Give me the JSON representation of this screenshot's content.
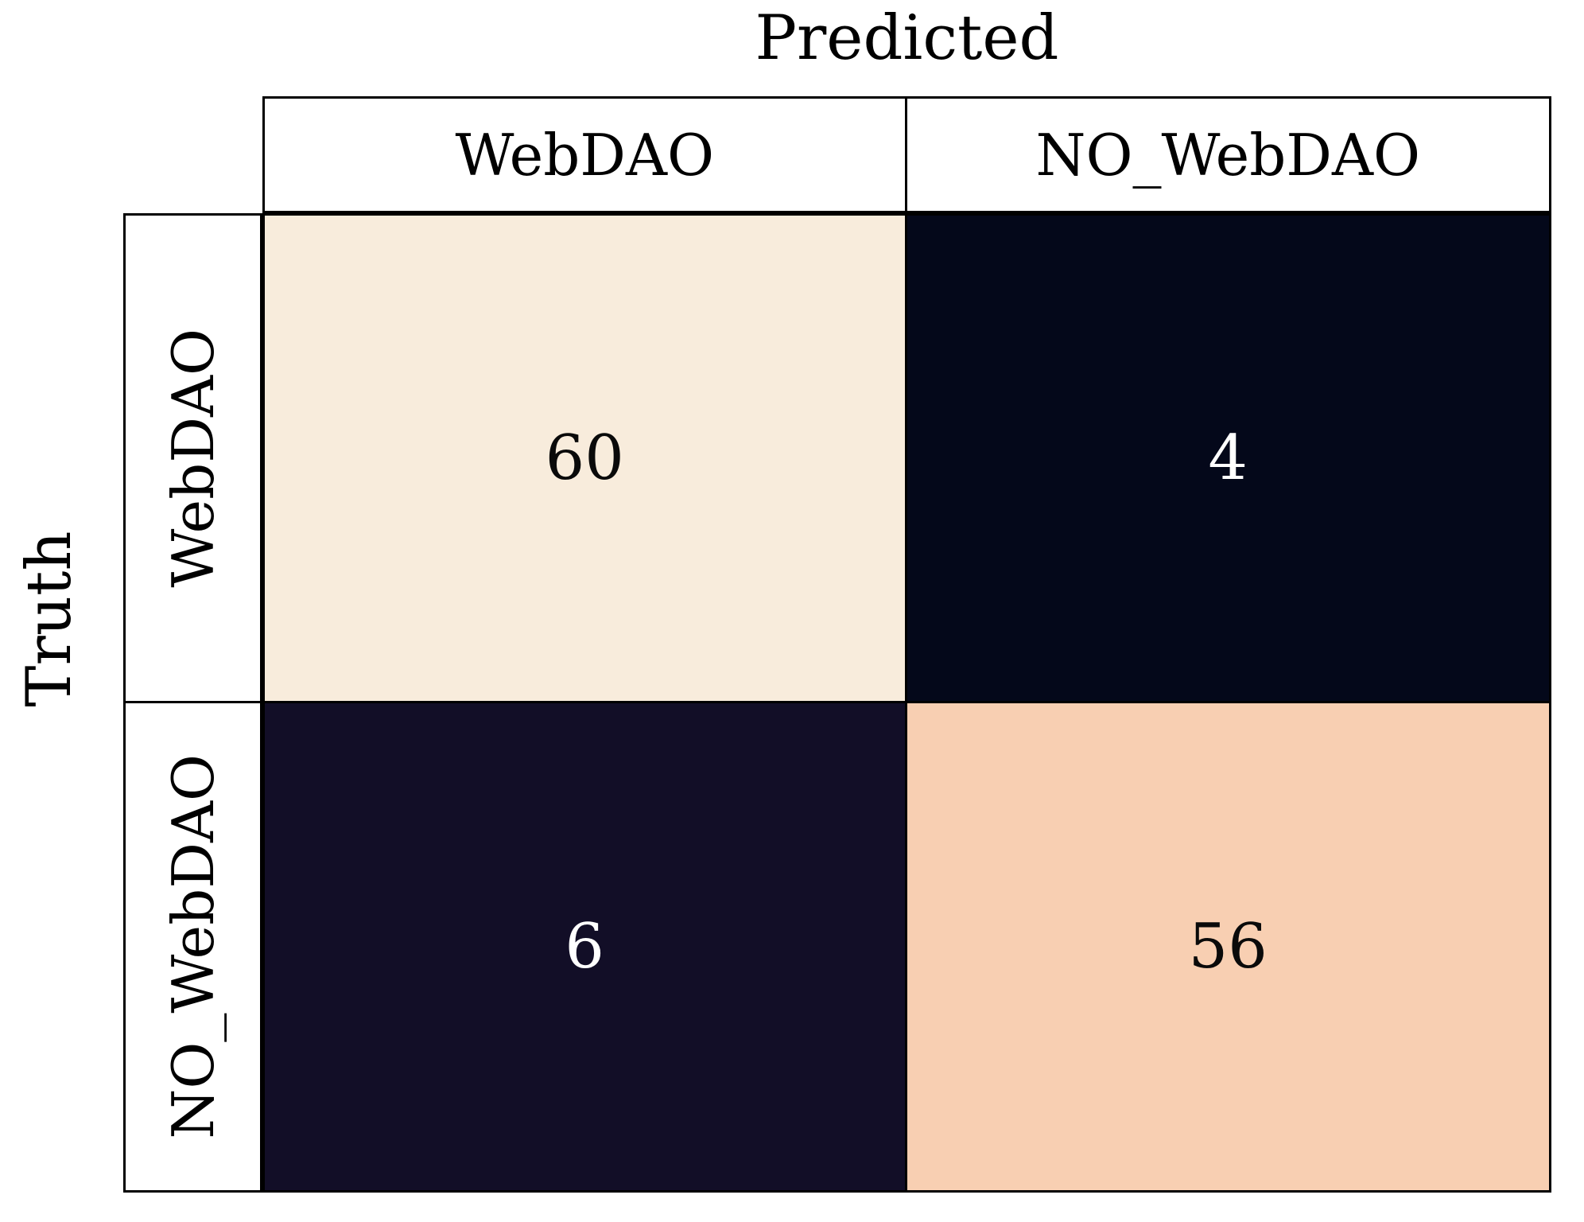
{
  "chart_data": {
    "type": "heatmap",
    "subtype": "confusion-matrix",
    "xlabel": "Predicted",
    "ylabel": "Truth",
    "xlabel_position": "top",
    "ylabel_position": "left",
    "columns": [
      "WebDAO",
      "NO_WebDAO"
    ],
    "rows": [
      "WebDAO",
      "NO_WebDAO"
    ],
    "values": [
      [
        60,
        4
      ],
      [
        6,
        56
      ]
    ],
    "cells": [
      {
        "row": "WebDAO",
        "col": "WebDAO",
        "value": 60,
        "bg": "#f8ecdc",
        "fg": "#0a0a0a"
      },
      {
        "row": "WebDAO",
        "col": "NO_WebDAO",
        "value": 4,
        "bg": "#04081a",
        "fg": "#ffffff"
      },
      {
        "row": "NO_WebDAO",
        "col": "WebDAO",
        "value": 6,
        "bg": "#120e27",
        "fg": "#ffffff"
      },
      {
        "row": "NO_WebDAO",
        "col": "NO_WebDAO",
        "value": 56,
        "bg": "#f8cfb2",
        "fg": "#0a0a0a"
      }
    ],
    "colors": {
      "background": "#ffffff",
      "border": "#000000"
    },
    "legend": "none",
    "grid": "off"
  }
}
